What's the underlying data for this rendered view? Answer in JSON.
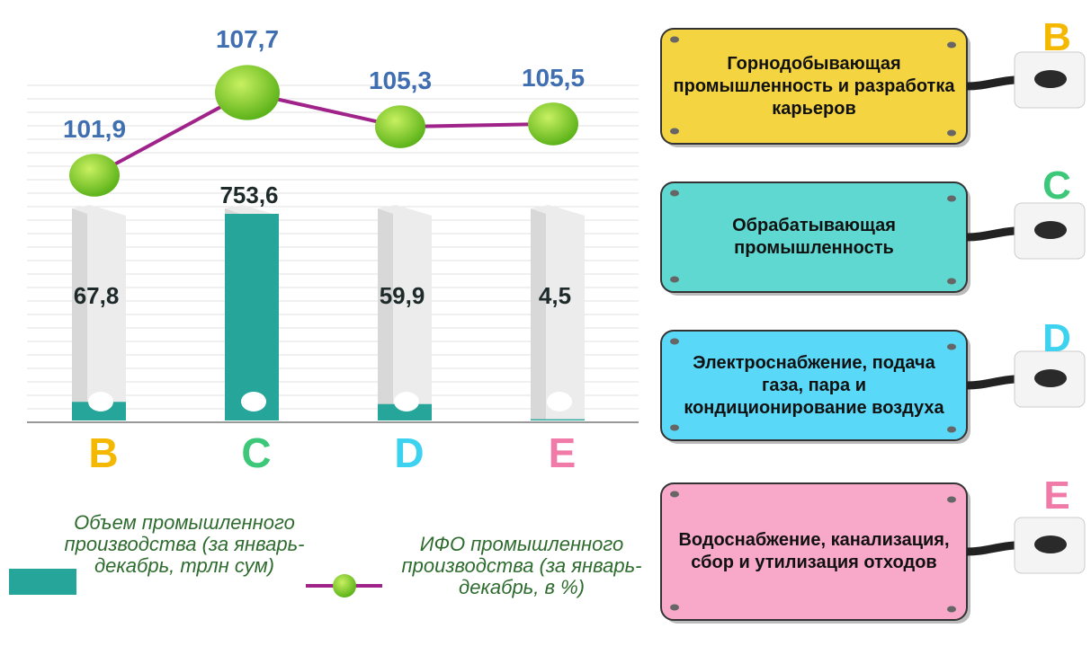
{
  "chart_data": {
    "type": "bar_line",
    "categories": [
      "B",
      "C",
      "D",
      "E"
    ],
    "category_colors": [
      "#f5b800",
      "#3cc878",
      "#3cd2f0",
      "#f07aa8"
    ],
    "category_descriptions": [
      "Горнодобывающая промышленность и разработка карьеров",
      "Обрабатывающая промышленность",
      "Электроснабжение, подача газа, пара и кондиционирование воздуха",
      "Водоснабжение, канализация, сбор и утилизация отходов"
    ],
    "panel_colors": [
      "#f5d442",
      "#5ed8d0",
      "#5ad8f8",
      "#f8a8c8"
    ],
    "series": [
      {
        "name": "Объем промышленного производства (за январь-декабрь, трлн сум)",
        "color": "#26a69a",
        "values": [
          67.8,
          753.6,
          59.9,
          4.5
        ],
        "value_labels": [
          "67,8",
          "753,6",
          "59,9",
          "4,5"
        ]
      },
      {
        "name": "ИФО промышленного производства (за январь-декабрь, в %)",
        "color": "#a0238a",
        "marker_color": "#7ed321",
        "values": [
          101.9,
          107.7,
          105.3,
          105.5
        ],
        "value_labels": [
          "101,9",
          "107,7",
          "105,3",
          "105,5"
        ]
      }
    ]
  }
}
